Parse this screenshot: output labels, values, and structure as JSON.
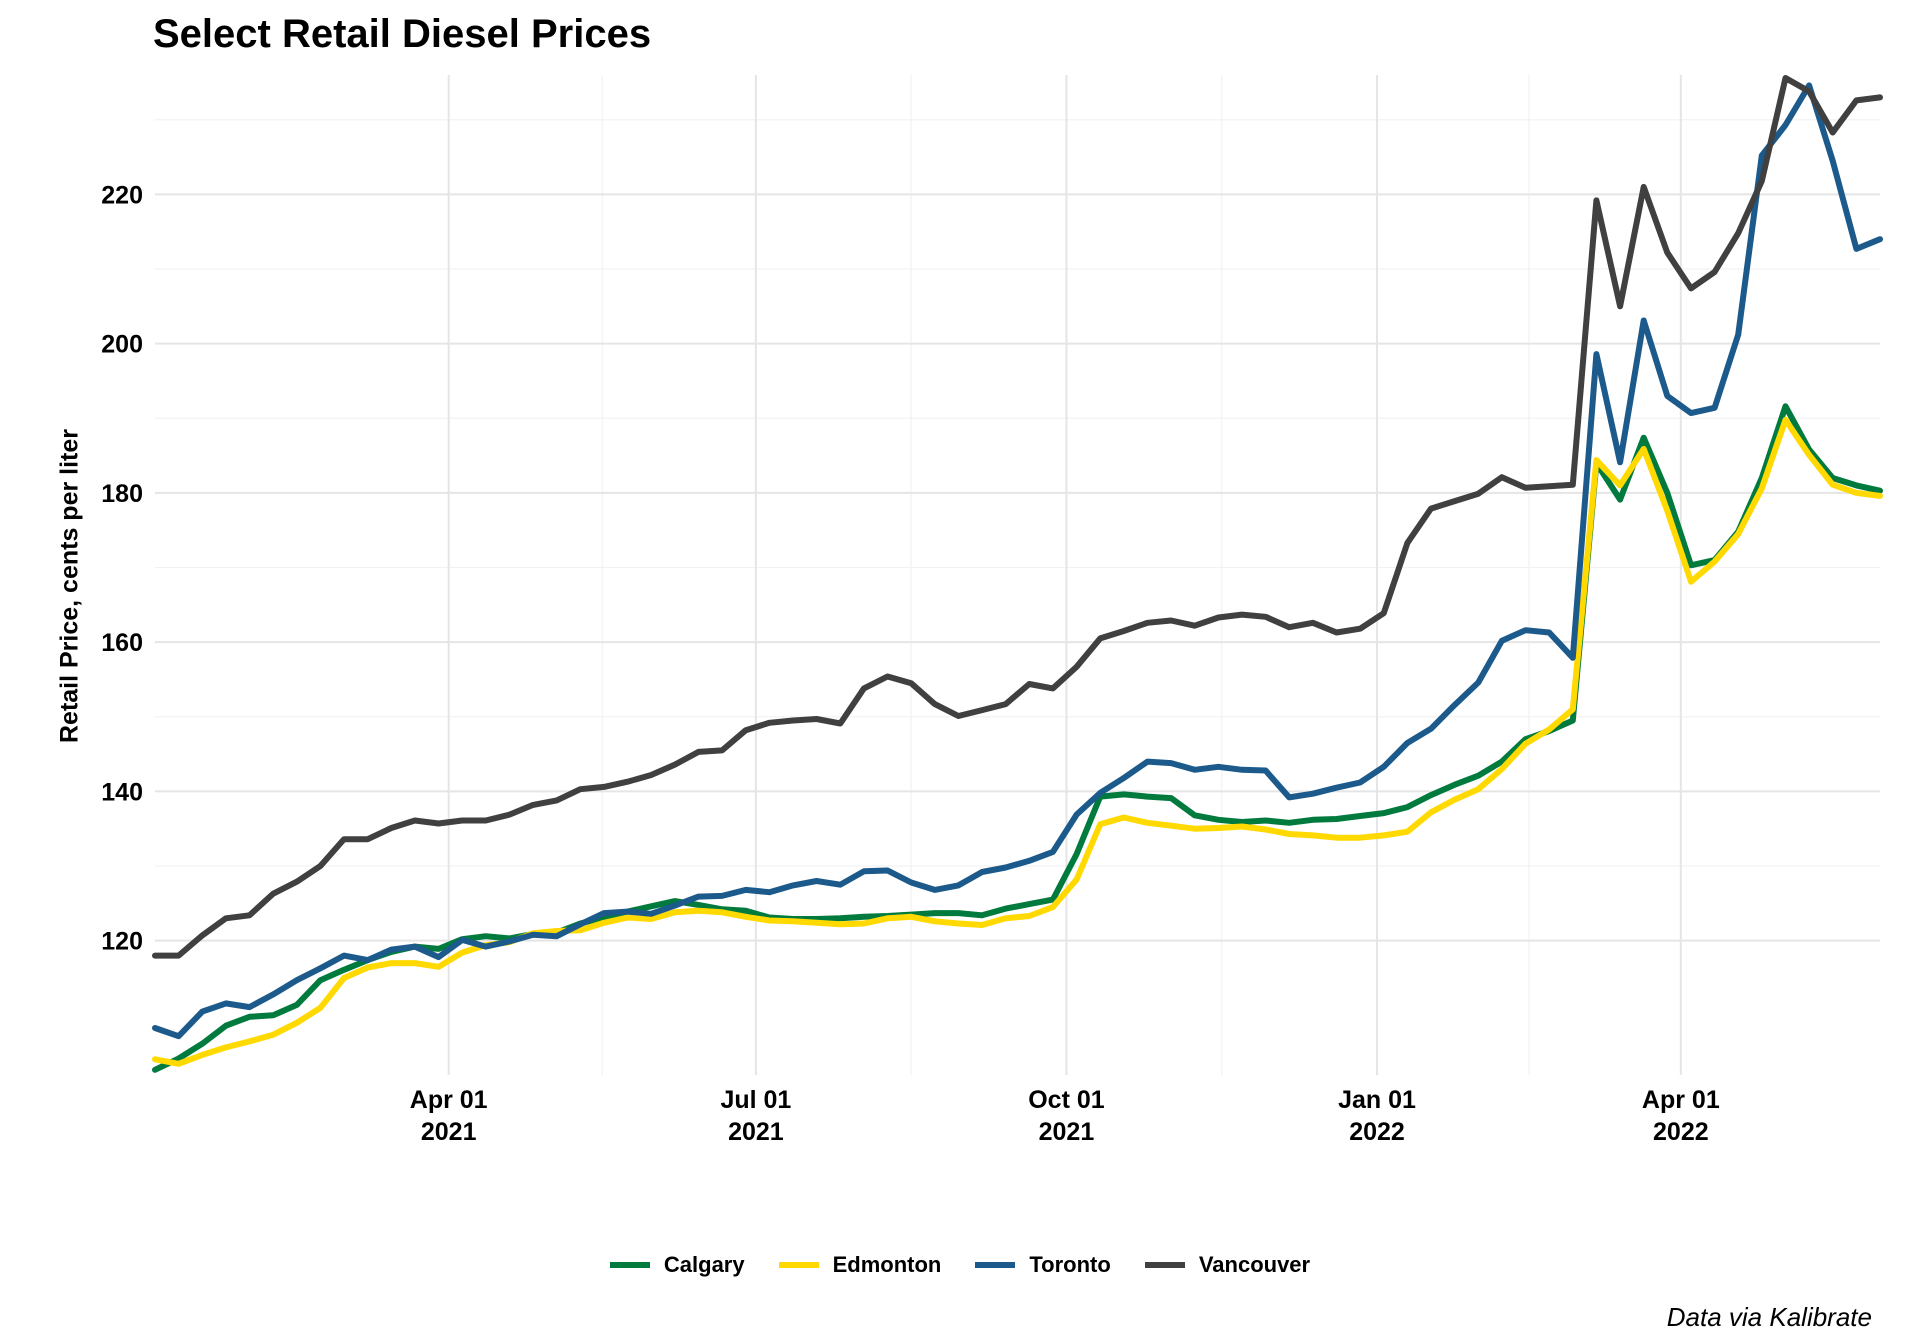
{
  "chart_data": {
    "type": "line",
    "title": "Select Retail Diesel Prices",
    "xlabel": "",
    "ylabel": "Retail Price, cents per liter",
    "caption": "Data via Kalibrate",
    "ylim": [
      102,
      236
    ],
    "y_ticks": [
      120,
      140,
      160,
      180,
      200,
      220
    ],
    "x_range": [
      "2021-01-04",
      "2022-05-30"
    ],
    "x_ticks": [
      {
        "date": "2021-04-01",
        "line1": "Apr 01",
        "line2": "2021"
      },
      {
        "date": "2021-07-01",
        "line1": "Jul 01",
        "line2": "2021"
      },
      {
        "date": "2021-10-01",
        "line1": "Oct 01",
        "line2": "2021"
      },
      {
        "date": "2022-01-01",
        "line1": "Jan 01",
        "line2": "2022"
      },
      {
        "date": "2022-04-01",
        "line1": "Apr 01",
        "line2": "2022"
      }
    ],
    "grid": true,
    "legend_position": "bottom",
    "x": [
      "2021-01-04",
      "2021-01-11",
      "2021-01-18",
      "2021-01-25",
      "2021-02-01",
      "2021-02-08",
      "2021-02-15",
      "2021-02-22",
      "2021-03-01",
      "2021-03-08",
      "2021-03-15",
      "2021-03-22",
      "2021-03-29",
      "2021-04-05",
      "2021-04-12",
      "2021-04-19",
      "2021-04-26",
      "2021-05-03",
      "2021-05-10",
      "2021-05-17",
      "2021-05-24",
      "2021-05-31",
      "2021-06-07",
      "2021-06-14",
      "2021-06-21",
      "2021-06-28",
      "2021-07-05",
      "2021-07-12",
      "2021-07-19",
      "2021-07-26",
      "2021-08-02",
      "2021-08-09",
      "2021-08-16",
      "2021-08-23",
      "2021-08-30",
      "2021-09-06",
      "2021-09-13",
      "2021-09-20",
      "2021-09-27",
      "2021-10-04",
      "2021-10-11",
      "2021-10-18",
      "2021-10-25",
      "2021-11-01",
      "2021-11-08",
      "2021-11-15",
      "2021-11-22",
      "2021-11-29",
      "2021-12-06",
      "2021-12-13",
      "2021-12-20",
      "2021-12-27",
      "2022-01-03",
      "2022-01-10",
      "2022-01-17",
      "2022-01-24",
      "2022-01-31",
      "2022-02-07",
      "2022-02-14",
      "2022-02-21",
      "2022-02-28",
      "2022-03-07",
      "2022-03-14",
      "2022-03-21",
      "2022-03-28",
      "2022-04-04",
      "2022-04-11",
      "2022-04-18",
      "2022-04-25",
      "2022-05-02",
      "2022-05-09",
      "2022-05-16",
      "2022-05-23",
      "2022-05-30"
    ],
    "series": [
      {
        "name": "Calgary",
        "color": "#007a3d",
        "values": [
          102.7,
          104.2,
          106.2,
          108.6,
          109.8,
          110.0,
          111.4,
          114.7,
          116.1,
          117.4,
          118.5,
          119.2,
          118.9,
          120.2,
          120.6,
          120.3,
          120.9,
          121.1,
          122.3,
          123.1,
          123.9,
          124.6,
          125.3,
          124.8,
          124.2,
          124.0,
          123.1,
          122.9,
          122.9,
          123.0,
          123.2,
          123.3,
          123.5,
          123.7,
          123.7,
          123.4,
          124.3,
          124.9,
          125.5,
          131.6,
          139.3,
          139.6,
          139.3,
          139.1,
          136.8,
          136.2,
          135.9,
          136.1,
          135.8,
          136.2,
          136.3,
          136.7,
          137.1,
          137.9,
          139.5,
          140.9,
          142.1,
          144.0,
          147.0,
          148.1,
          149.5,
          184.0,
          179.1,
          187.4,
          180.0,
          170.3,
          171.0,
          174.8,
          182.0,
          191.6,
          185.8,
          182.0,
          181.0,
          180.3
        ]
      },
      {
        "name": "Edmonton",
        "color": "#ffd900",
        "values": [
          104.1,
          103.5,
          104.7,
          105.7,
          106.5,
          107.4,
          109.0,
          111.0,
          115.0,
          116.4,
          117.0,
          117.0,
          116.5,
          118.4,
          119.4,
          119.8,
          121.0,
          121.3,
          121.4,
          122.4,
          123.1,
          122.9,
          123.8,
          124.0,
          123.8,
          123.2,
          122.7,
          122.6,
          122.4,
          122.2,
          122.3,
          123.0,
          123.2,
          122.6,
          122.3,
          122.1,
          123.0,
          123.3,
          124.5,
          128.2,
          135.6,
          136.5,
          135.8,
          135.4,
          135.0,
          135.1,
          135.3,
          134.9,
          134.3,
          134.1,
          133.8,
          133.8,
          134.1,
          134.6,
          137.2,
          138.9,
          140.3,
          143.0,
          146.4,
          148.3,
          151.0,
          184.4,
          181.0,
          185.9,
          177.6,
          168.1,
          170.8,
          174.5,
          180.6,
          189.8,
          185.1,
          181.1,
          180.0,
          179.6
        ]
      },
      {
        "name": "Toronto",
        "color": "#1c5a8c",
        "values": [
          108.3,
          107.2,
          110.5,
          111.6,
          111.1,
          112.8,
          114.7,
          116.3,
          118.0,
          117.4,
          118.8,
          119.2,
          117.8,
          120.1,
          119.2,
          119.9,
          120.8,
          120.6,
          122.2,
          123.7,
          123.9,
          123.6,
          124.7,
          125.9,
          126.0,
          126.8,
          126.5,
          127.4,
          128.0,
          127.5,
          129.3,
          129.4,
          127.8,
          126.8,
          127.4,
          129.2,
          129.8,
          130.7,
          131.9,
          136.9,
          139.8,
          141.8,
          144.0,
          143.8,
          142.9,
          143.3,
          142.9,
          142.8,
          139.2,
          139.7,
          140.5,
          141.2,
          143.3,
          146.5,
          148.4,
          151.6,
          154.6,
          160.2,
          161.6,
          161.3,
          157.9,
          198.6,
          184.1,
          203.1,
          193.0,
          190.7,
          191.4,
          201.2,
          225.2,
          229.3,
          234.6,
          224.5,
          212.7,
          214.0
        ]
      },
      {
        "name": "Vancouver",
        "color": "#404040",
        "values": [
          118.0,
          118.0,
          120.7,
          123.0,
          123.4,
          126.3,
          127.9,
          130.0,
          133.6,
          133.6,
          135.1,
          136.1,
          135.7,
          136.1,
          136.1,
          136.9,
          138.2,
          138.8,
          140.3,
          140.6,
          141.3,
          142.2,
          143.6,
          145.3,
          145.5,
          148.2,
          149.2,
          149.5,
          149.7,
          149.1,
          153.8,
          155.4,
          154.5,
          151.7,
          150.1,
          150.9,
          151.7,
          154.4,
          153.8,
          156.7,
          160.5,
          161.5,
          162.6,
          162.9,
          162.2,
          163.3,
          163.7,
          163.4,
          162.0,
          162.6,
          161.3,
          161.8,
          163.9,
          173.3,
          177.9,
          178.9,
          179.9,
          182.1,
          180.7,
          180.9,
          181.1,
          219.2,
          205.0,
          221.0,
          212.2,
          207.4,
          209.6,
          214.8,
          221.8,
          235.6,
          233.8,
          228.3,
          232.6,
          233.0
        ]
      }
    ]
  }
}
